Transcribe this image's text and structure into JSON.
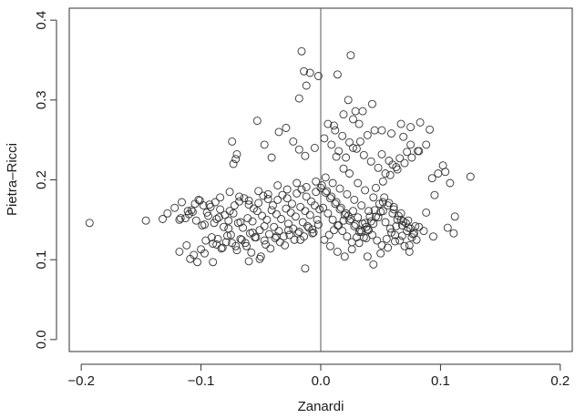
{
  "chart_data": {
    "type": "scatter",
    "xlabel": "Zanardi",
    "ylabel": "Pietra–Ricci",
    "xlim": [
      -0.21,
      0.21
    ],
    "ylim": [
      -0.015,
      0.415
    ],
    "x_ticks": [
      -0.2,
      -0.1,
      0.0,
      0.1,
      0.2
    ],
    "x_tick_labels": [
      "−0.2",
      "−0.1",
      "0.0",
      "0.1",
      "0.2"
    ],
    "y_ticks": [
      0.0,
      0.1,
      0.2,
      0.3,
      0.4
    ],
    "y_tick_labels": [
      "0.0",
      "0.1",
      "0.2",
      "0.3",
      "0.4"
    ],
    "reference_line": {
      "orientation": "vertical",
      "x": 0.0
    },
    "marker": "open-circle",
    "colors": {
      "marker_stroke": "#333333",
      "axis": "#333333",
      "reference_line": "#555555"
    },
    "series": [
      {
        "x": [
          -0.193,
          -0.146,
          -0.132,
          -0.128,
          -0.118,
          -0.113,
          -0.108,
          -0.105,
          -0.101,
          -0.098,
          -0.095,
          -0.092,
          -0.088,
          -0.084,
          -0.08,
          -0.076,
          -0.072,
          -0.068,
          -0.064,
          -0.06,
          -0.056,
          -0.052,
          -0.048,
          -0.044,
          -0.04,
          -0.036,
          -0.032,
          -0.028,
          -0.024,
          -0.02,
          -0.016,
          -0.012,
          -0.008,
          -0.004,
          0.0,
          -0.11,
          -0.104,
          -0.099,
          -0.094,
          -0.089,
          -0.085,
          -0.081,
          -0.077,
          -0.073,
          -0.069,
          -0.065,
          -0.061,
          -0.057,
          -0.053,
          -0.049,
          -0.045,
          -0.041,
          -0.037,
          -0.033,
          -0.029,
          -0.025,
          -0.021,
          -0.017,
          -0.013,
          -0.009,
          -0.005,
          -0.001,
          -0.118,
          -0.112,
          -0.106,
          -0.1,
          -0.096,
          -0.091,
          -0.087,
          -0.083,
          -0.079,
          -0.075,
          -0.071,
          -0.067,
          -0.063,
          -0.059,
          -0.055,
          -0.051,
          -0.047,
          -0.043,
          -0.039,
          -0.035,
          -0.031,
          -0.027,
          -0.023,
          -0.019,
          -0.015,
          -0.011,
          -0.007,
          -0.003,
          -0.109,
          -0.103,
          -0.097,
          -0.09,
          -0.086,
          -0.082,
          -0.078,
          -0.074,
          -0.07,
          -0.066,
          -0.062,
          -0.058,
          -0.054,
          -0.05,
          -0.046,
          -0.042,
          -0.038,
          -0.034,
          -0.03,
          -0.026,
          -0.022,
          -0.018,
          -0.014,
          -0.01,
          -0.006,
          -0.002,
          -0.122,
          -0.116,
          -0.111,
          -0.102,
          -0.093,
          -0.084,
          -0.076,
          -0.068,
          -0.06,
          -0.052,
          -0.044,
          -0.036,
          -0.028,
          -0.02,
          -0.012,
          -0.004,
          -0.117,
          -0.107,
          -0.097,
          -0.087,
          -0.077,
          -0.067,
          -0.057,
          -0.047,
          -0.037,
          -0.027,
          -0.017,
          -0.007,
          -0.073,
          -0.071,
          -0.07,
          -0.074,
          -0.053,
          -0.047,
          -0.041,
          -0.035,
          -0.029,
          -0.023,
          -0.018,
          -0.013,
          -0.009,
          -0.005,
          0.002,
          0.006,
          0.01,
          0.014,
          0.018,
          0.022,
          0.026,
          0.03,
          0.034,
          0.038,
          0.042,
          0.046,
          0.05,
          0.054,
          0.058,
          0.062,
          0.066,
          0.07,
          0.074,
          0.078,
          0.082,
          0.003,
          0.007,
          0.011,
          0.015,
          0.019,
          0.023,
          0.027,
          0.031,
          0.035,
          0.039,
          0.043,
          0.047,
          0.051,
          0.055,
          0.059,
          0.063,
          0.067,
          0.071,
          0.075,
          0.004,
          0.008,
          0.012,
          0.016,
          0.02,
          0.024,
          0.028,
          0.032,
          0.036,
          0.04,
          0.044,
          0.048,
          0.052,
          0.056,
          0.06,
          0.064,
          0.068,
          0.072,
          0.001,
          0.005,
          0.009,
          0.013,
          0.017,
          0.021,
          0.025,
          0.029,
          0.033,
          0.037,
          0.041,
          0.045,
          0.049,
          0.053,
          0.057,
          0.061,
          0.065,
          0.069,
          0.073,
          0.077,
          0.003,
          0.009,
          0.015,
          0.021,
          0.027,
          0.033,
          0.039,
          0.045,
          0.051,
          0.057,
          0.063,
          0.069,
          0.075,
          0.081,
          0.006,
          0.012,
          0.018,
          0.024,
          0.03,
          0.036,
          0.042,
          0.048,
          0.054,
          0.06,
          0.066,
          0.072,
          0.004,
          0.01,
          0.016,
          0.022,
          0.028,
          0.034,
          0.04,
          0.046,
          0.052,
          0.058,
          0.064,
          0.07,
          0.076,
          0.082,
          0.088,
          0.008,
          0.014,
          0.02,
          0.026,
          0.032,
          0.038,
          0.044,
          0.05,
          0.056,
          0.062,
          0.068,
          0.074,
          0.08,
          0.011,
          0.019,
          0.027,
          0.035,
          0.043,
          0.051,
          0.059,
          0.067,
          0.075,
          0.083,
          0.091,
          -0.016,
          -0.014,
          -0.002,
          0.014,
          0.025,
          -0.012,
          -0.018,
          0.023,
          0.029,
          0.032,
          0.093,
          0.098,
          0.102,
          0.104,
          0.108,
          0.112,
          0.125,
          0.111,
          0.095,
          0.088,
          0.106,
          0.076,
          0.039,
          -0.013,
          -0.051,
          -0.06,
          -0.09,
          0.013,
          0.019,
          0.024,
          0.031,
          0.037,
          0.044,
          0.052,
          0.061,
          0.067,
          0.073,
          0.079,
          0.086,
          0.094
        ],
        "y": [
          0.146,
          0.149,
          0.151,
          0.158,
          0.15,
          0.152,
          0.162,
          0.17,
          0.174,
          0.168,
          0.159,
          0.166,
          0.172,
          0.163,
          0.156,
          0.161,
          0.168,
          0.173,
          0.177,
          0.169,
          0.164,
          0.171,
          0.18,
          0.176,
          0.168,
          0.175,
          0.181,
          0.177,
          0.17,
          0.183,
          0.188,
          0.179,
          0.173,
          0.185,
          0.19,
          0.157,
          0.149,
          0.143,
          0.155,
          0.146,
          0.153,
          0.141,
          0.149,
          0.158,
          0.146,
          0.14,
          0.152,
          0.148,
          0.161,
          0.155,
          0.15,
          0.162,
          0.157,
          0.151,
          0.164,
          0.159,
          0.154,
          0.166,
          0.161,
          0.156,
          0.168,
          0.163,
          0.11,
          0.118,
          0.106,
          0.113,
          0.124,
          0.128,
          0.119,
          0.114,
          0.122,
          0.131,
          0.117,
          0.126,
          0.121,
          0.133,
          0.128,
          0.137,
          0.124,
          0.132,
          0.141,
          0.136,
          0.129,
          0.145,
          0.139,
          0.133,
          0.147,
          0.142,
          0.138,
          0.15,
          0.101,
          0.097,
          0.108,
          0.12,
          0.126,
          0.115,
          0.13,
          0.121,
          0.112,
          0.125,
          0.117,
          0.109,
          0.128,
          0.104,
          0.119,
          0.114,
          0.127,
          0.122,
          0.118,
          0.131,
          0.125,
          0.135,
          0.129,
          0.14,
          0.134,
          0.144,
          0.165,
          0.172,
          0.161,
          0.175,
          0.169,
          0.178,
          0.185,
          0.179,
          0.174,
          0.186,
          0.182,
          0.193,
          0.188,
          0.196,
          0.191,
          0.198,
          0.152,
          0.16,
          0.144,
          0.151,
          0.139,
          0.147,
          0.134,
          0.142,
          0.129,
          0.137,
          0.125,
          0.133,
          0.22,
          0.226,
          0.232,
          0.248,
          0.274,
          0.244,
          0.228,
          0.26,
          0.265,
          0.248,
          0.238,
          0.23,
          0.334,
          0.24,
          0.165,
          0.158,
          0.15,
          0.143,
          0.136,
          0.129,
          0.122,
          0.128,
          0.135,
          0.141,
          0.148,
          0.154,
          0.16,
          0.147,
          0.139,
          0.131,
          0.124,
          0.117,
          0.11,
          0.133,
          0.141,
          0.125,
          0.131,
          0.137,
          0.143,
          0.149,
          0.155,
          0.161,
          0.153,
          0.145,
          0.138,
          0.131,
          0.124,
          0.118,
          0.126,
          0.134,
          0.142,
          0.15,
          0.146,
          0.139,
          0.184,
          0.177,
          0.17,
          0.163,
          0.156,
          0.149,
          0.142,
          0.135,
          0.128,
          0.137,
          0.145,
          0.153,
          0.161,
          0.168,
          0.158,
          0.15,
          0.143,
          0.136,
          0.193,
          0.186,
          0.179,
          0.172,
          0.165,
          0.158,
          0.151,
          0.144,
          0.137,
          0.146,
          0.154,
          0.162,
          0.17,
          0.178,
          0.171,
          0.163,
          0.155,
          0.148,
          0.14,
          0.132,
          0.252,
          0.244,
          0.236,
          0.228,
          0.24,
          0.248,
          0.256,
          0.262,
          0.232,
          0.224,
          0.216,
          0.254,
          0.244,
          0.236,
          0.27,
          0.262,
          0.255,
          0.247,
          0.239,
          0.231,
          0.223,
          0.215,
          0.208,
          0.219,
          0.227,
          0.235,
          0.203,
          0.196,
          0.189,
          0.182,
          0.175,
          0.168,
          0.161,
          0.19,
          0.198,
          0.206,
          0.213,
          0.221,
          0.228,
          0.236,
          0.244,
          0.117,
          0.11,
          0.104,
          0.113,
          0.121,
          0.127,
          0.094,
          0.108,
          0.115,
          0.123,
          0.13,
          0.118,
          0.125,
          0.268,
          0.282,
          0.276,
          0.286,
          0.295,
          0.262,
          0.258,
          0.27,
          0.266,
          0.272,
          0.263,
          0.361,
          0.336,
          0.33,
          0.332,
          0.356,
          0.318,
          0.302,
          0.3,
          0.286,
          0.27,
          0.202,
          0.208,
          0.218,
          0.21,
          0.196,
          0.154,
          0.204,
          0.133,
          0.181,
          0.159,
          0.14,
          0.128,
          0.104,
          0.089,
          0.101,
          0.098,
          0.097,
          0.229,
          0.214,
          0.208,
          0.196,
          0.187,
          0.178,
          0.172,
          0.166,
          0.158,
          0.149,
          0.142,
          0.136,
          0.129
        ]
      }
    ]
  }
}
